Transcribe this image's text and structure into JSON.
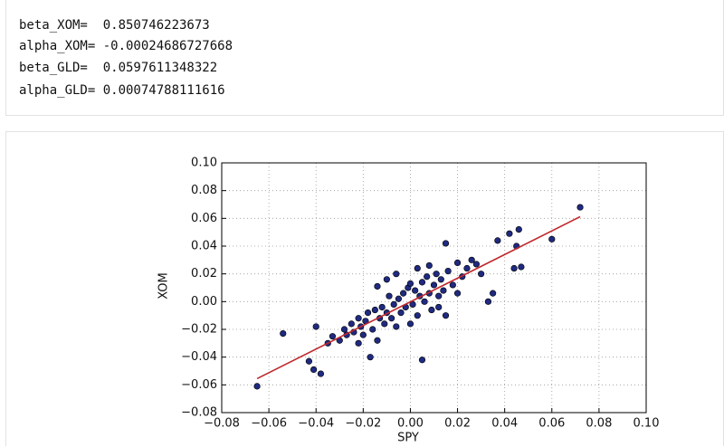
{
  "output_lines": [
    "beta_XOM=  0.850746223673",
    "alpha_XOM= -0.00024686727668",
    "beta_GLD=  0.0597611348322",
    "alpha_GLD= 0.00074788111616"
  ],
  "chart_data": {
    "type": "scatter",
    "xlabel": "SPY",
    "ylabel": "XOM",
    "xlim": [
      -0.08,
      0.1
    ],
    "ylim": [
      -0.08,
      0.1
    ],
    "xticks": [
      {
        "value": -0.08,
        "label": "−0.08"
      },
      {
        "value": -0.06,
        "label": "−0.06"
      },
      {
        "value": -0.04,
        "label": "−0.04"
      },
      {
        "value": -0.02,
        "label": "−0.02"
      },
      {
        "value": 0,
        "label": "0.00"
      },
      {
        "value": 0.02,
        "label": "0.02"
      },
      {
        "value": 0.04,
        "label": "0.04"
      },
      {
        "value": 0.06,
        "label": "0.06"
      },
      {
        "value": 0.08,
        "label": "0.08"
      },
      {
        "value": 0.1,
        "label": "0.10"
      }
    ],
    "yticks": [
      {
        "value": -0.08,
        "label": "−0.08"
      },
      {
        "value": -0.06,
        "label": "−0.06"
      },
      {
        "value": -0.04,
        "label": "−0.04"
      },
      {
        "value": -0.02,
        "label": "−0.02"
      },
      {
        "value": 0,
        "label": "0.00"
      },
      {
        "value": 0.02,
        "label": "0.02"
      },
      {
        "value": 0.04,
        "label": "0.04"
      },
      {
        "value": 0.06,
        "label": "0.06"
      },
      {
        "value": 0.08,
        "label": "0.08"
      },
      {
        "value": 0.1,
        "label": "0.10"
      }
    ],
    "grid": true,
    "series": [
      {
        "color": "#1f2a80",
        "x": [
          -0.065,
          -0.054,
          -0.043,
          -0.041,
          -0.038,
          -0.04,
          -0.035,
          -0.033,
          -0.03,
          -0.028,
          -0.027,
          -0.025,
          -0.024,
          -0.022,
          -0.021,
          -0.02,
          -0.019,
          -0.018,
          -0.017,
          -0.016,
          -0.015,
          -0.014,
          -0.013,
          -0.012,
          -0.011,
          -0.01,
          -0.009,
          -0.008,
          -0.007,
          -0.006,
          -0.005,
          -0.004,
          -0.003,
          -0.002,
          -0.001,
          0.0,
          0.001,
          0.002,
          0.003,
          0.004,
          0.005,
          0.006,
          0.007,
          0.008,
          0.009,
          0.01,
          0.011,
          0.012,
          0.013,
          0.014,
          0.015,
          0.016,
          0.018,
          0.02,
          0.022,
          0.024,
          0.026,
          0.028,
          0.03,
          0.033,
          0.035,
          0.037,
          0.042,
          0.044,
          0.045,
          0.046,
          0.047,
          0.06,
          0.072,
          0.005,
          -0.014,
          0.015,
          -0.01,
          0.008,
          0.0,
          -0.006,
          0.012,
          0.02,
          -0.022,
          0.003
        ],
        "y": [
          -0.061,
          -0.023,
          -0.043,
          -0.049,
          -0.052,
          -0.018,
          -0.03,
          -0.025,
          -0.028,
          -0.02,
          -0.024,
          -0.016,
          -0.022,
          -0.012,
          -0.018,
          -0.024,
          -0.014,
          -0.008,
          -0.04,
          -0.02,
          -0.006,
          0.011,
          -0.012,
          -0.004,
          -0.016,
          -0.008,
          0.004,
          -0.012,
          -0.002,
          -0.018,
          0.002,
          -0.008,
          0.006,
          -0.004,
          0.01,
          0.013,
          -0.002,
          0.008,
          -0.01,
          0.004,
          0.014,
          0.0,
          0.018,
          0.006,
          -0.006,
          0.012,
          0.02,
          0.004,
          0.016,
          0.008,
          0.042,
          0.022,
          0.012,
          0.028,
          0.018,
          0.024,
          0.03,
          0.027,
          0.02,
          0.0,
          0.006,
          0.044,
          0.049,
          0.024,
          0.04,
          0.052,
          0.025,
          0.045,
          0.068,
          -0.042,
          -0.028,
          -0.01,
          0.016,
          0.026,
          -0.016,
          0.02,
          -0.004,
          0.006,
          -0.03,
          0.024
        ]
      }
    ],
    "fit_line": {
      "color": "#c0282d",
      "x": [
        -0.065,
        0.072
      ],
      "y": [
        -0.0555,
        0.0612
      ]
    }
  }
}
